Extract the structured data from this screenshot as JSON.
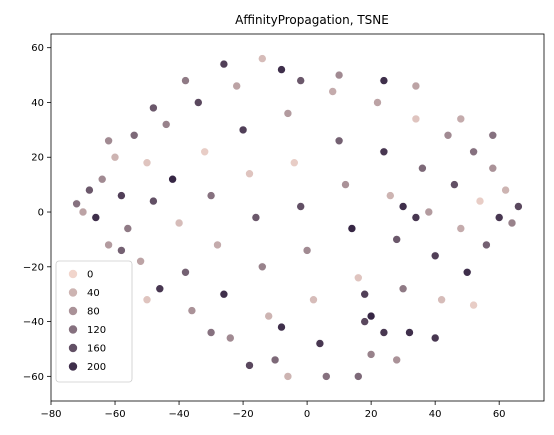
{
  "chart_data": {
    "type": "scatter",
    "title": "AffinityPropagation, TSNE",
    "xlabel": "",
    "ylabel": "",
    "xlim": [
      -80,
      74
    ],
    "ylim": [
      -69,
      65
    ],
    "x_ticks": [
      -80,
      -60,
      -40,
      -20,
      0,
      20,
      40,
      60
    ],
    "y_ticks": [
      -60,
      -40,
      -20,
      0,
      20,
      40,
      60
    ],
    "x_tick_labels": [
      "−80",
      "−60",
      "−40",
      "−20",
      "0",
      "20",
      "40",
      "60"
    ],
    "y_tick_labels": [
      "−60",
      "−40",
      "−20",
      "0",
      "20",
      "40",
      "60"
    ],
    "grid": false,
    "hue_range": [
      0,
      220
    ],
    "color_low": "#f1d5cc",
    "color_high": "#2d1e3e",
    "legend": {
      "placement": "lower-left",
      "entries": [
        {
          "label": "0",
          "value": 0
        },
        {
          "label": "40",
          "value": 40
        },
        {
          "label": "80",
          "value": 80
        },
        {
          "label": "120",
          "value": 120
        },
        {
          "label": "160",
          "value": 160
        },
        {
          "label": "200",
          "value": 200
        }
      ]
    },
    "points": [
      [
        -68,
        8,
        150
      ],
      [
        -72,
        3,
        120
      ],
      [
        -66,
        -2,
        200
      ],
      [
        -64,
        12,
        90
      ],
      [
        -60,
        20,
        40
      ],
      [
        -58,
        6,
        180
      ],
      [
        -56,
        -6,
        110
      ],
      [
        -62,
        -12,
        70
      ],
      [
        -54,
        28,
        130
      ],
      [
        -50,
        18,
        20
      ],
      [
        -48,
        4,
        160
      ],
      [
        -52,
        -18,
        60
      ],
      [
        -46,
        -28,
        190
      ],
      [
        -44,
        32,
        100
      ],
      [
        -42,
        12,
        210
      ],
      [
        -40,
        -4,
        30
      ],
      [
        -38,
        -22,
        140
      ],
      [
        -36,
        -36,
        80
      ],
      [
        -34,
        40,
        170
      ],
      [
        -32,
        22,
        10
      ],
      [
        -30,
        6,
        120
      ],
      [
        -28,
        -12,
        50
      ],
      [
        -26,
        -30,
        200
      ],
      [
        -24,
        -46,
        90
      ],
      [
        -22,
        46,
        60
      ],
      [
        -20,
        30,
        180
      ],
      [
        -18,
        14,
        20
      ],
      [
        -16,
        -2,
        150
      ],
      [
        -14,
        -20,
        100
      ],
      [
        -12,
        -38,
        40
      ],
      [
        -10,
        -54,
        130
      ],
      [
        -8,
        52,
        200
      ],
      [
        -6,
        36,
        70
      ],
      [
        -4,
        18,
        10
      ],
      [
        -2,
        2,
        160
      ],
      [
        0,
        -14,
        90
      ],
      [
        2,
        -32,
        30
      ],
      [
        4,
        -48,
        190
      ],
      [
        6,
        -60,
        120
      ],
      [
        8,
        44,
        50
      ],
      [
        10,
        26,
        140
      ],
      [
        12,
        10,
        80
      ],
      [
        14,
        -6,
        210
      ],
      [
        16,
        -24,
        20
      ],
      [
        18,
        -40,
        170
      ],
      [
        20,
        -52,
        100
      ],
      [
        22,
        40,
        60
      ],
      [
        24,
        22,
        190
      ],
      [
        26,
        6,
        40
      ],
      [
        28,
        -10,
        150
      ],
      [
        30,
        -28,
        110
      ],
      [
        32,
        -44,
        200
      ],
      [
        34,
        34,
        20
      ],
      [
        36,
        16,
        130
      ],
      [
        38,
        0,
        70
      ],
      [
        40,
        -16,
        180
      ],
      [
        42,
        -32,
        30
      ],
      [
        44,
        28,
        90
      ],
      [
        46,
        10,
        160
      ],
      [
        48,
        -6,
        50
      ],
      [
        50,
        -22,
        200
      ],
      [
        52,
        22,
        120
      ],
      [
        54,
        4,
        10
      ],
      [
        56,
        -12,
        140
      ],
      [
        58,
        16,
        80
      ],
      [
        60,
        -2,
        190
      ],
      [
        62,
        8,
        40
      ],
      [
        64,
        -4,
        100
      ],
      [
        66,
        2,
        170
      ],
      [
        -70,
        0,
        60
      ],
      [
        -58,
        -14,
        140
      ],
      [
        -50,
        -32,
        20
      ],
      [
        -38,
        48,
        110
      ],
      [
        -26,
        54,
        180
      ],
      [
        -14,
        56,
        30
      ],
      [
        -2,
        48,
        150
      ],
      [
        10,
        50,
        90
      ],
      [
        24,
        48,
        200
      ],
      [
        34,
        46,
        60
      ],
      [
        -30,
        -44,
        120
      ],
      [
        -18,
        -56,
        170
      ],
      [
        -6,
        -60,
        40
      ],
      [
        16,
        -60,
        130
      ],
      [
        28,
        -54,
        80
      ],
      [
        40,
        -46,
        190
      ],
      [
        52,
        -34,
        10
      ],
      [
        -62,
        26,
        90
      ],
      [
        -48,
        38,
        150
      ],
      [
        48,
        34,
        50
      ],
      [
        58,
        28,
        120
      ],
      [
        -8,
        -42,
        200
      ],
      [
        20,
        -38,
        210
      ],
      [
        24,
        -44,
        190
      ],
      [
        18,
        -30,
        180
      ],
      [
        30,
        2,
        200
      ],
      [
        34,
        -2,
        190
      ]
    ]
  }
}
